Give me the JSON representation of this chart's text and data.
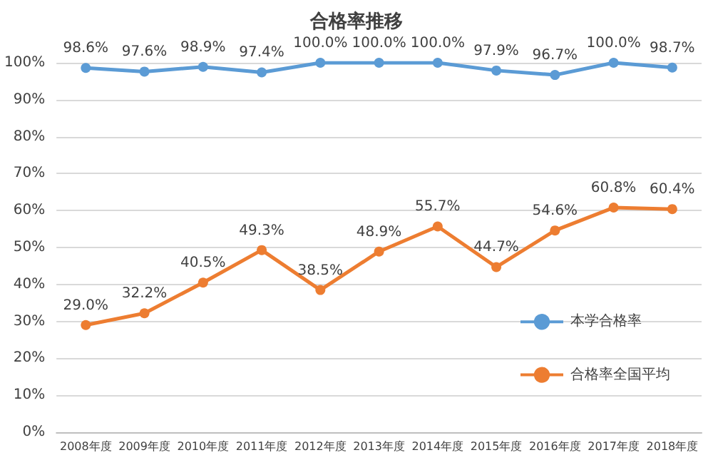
{
  "chart_data": {
    "type": "line",
    "title": "合格率推移",
    "categories": [
      "2008年度",
      "2009年度",
      "2010年度",
      "2011年度",
      "2012年度",
      "2013年度",
      "2014年度",
      "2015年度",
      "2016年度",
      "2017年度",
      "2018年度"
    ],
    "series": [
      {
        "name": "本学合格率",
        "color": "#5b9bd5",
        "values": [
          98.6,
          97.6,
          98.9,
          97.4,
          100.0,
          100.0,
          100.0,
          97.9,
          96.7,
          100.0,
          98.7
        ],
        "value_labels": [
          "98.6%",
          "97.6%",
          "98.9%",
          "97.4%",
          "100.0%",
          "100.0%",
          "100.0%",
          "97.9%",
          "96.7%",
          "100.0%",
          "98.7%"
        ]
      },
      {
        "name": "合格率全国平均",
        "color": "#ed7d31",
        "values": [
          29.0,
          32.2,
          40.5,
          49.3,
          38.5,
          48.9,
          55.7,
          44.7,
          54.6,
          60.8,
          60.4
        ],
        "value_labels": [
          "29.0%",
          "32.2%",
          "40.5%",
          "49.3%",
          "38.5%",
          "48.9%",
          "55.7%",
          "44.7%",
          "54.6%",
          "60.8%",
          "60.4%"
        ]
      }
    ],
    "ylim": [
      0,
      100
    ],
    "yticks": [
      {
        "value": 0,
        "label": "0%"
      },
      {
        "value": 10,
        "label": "10%"
      },
      {
        "value": 20,
        "label": "20%"
      },
      {
        "value": 30,
        "label": "30%"
      },
      {
        "value": 40,
        "label": "40%"
      },
      {
        "value": 50,
        "label": "50%"
      },
      {
        "value": 60,
        "label": "60%"
      },
      {
        "value": 70,
        "label": "70%"
      },
      {
        "value": 80,
        "label": "80%"
      },
      {
        "value": 90,
        "label": "90%"
      },
      {
        "value": 100,
        "label": "100%"
      }
    ],
    "grid": "y",
    "legend": "right",
    "marker": "circle",
    "line_style": "solid"
  }
}
